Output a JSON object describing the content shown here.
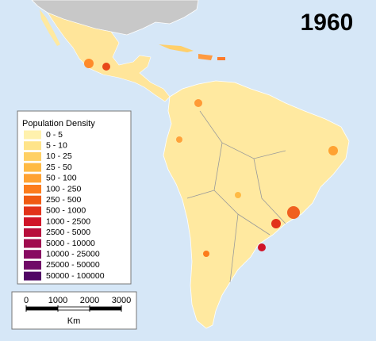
{
  "title": "1960",
  "legend": {
    "title": "Population Density",
    "items": [
      {
        "label": "0 - 5",
        "color": "#fff1ad"
      },
      {
        "label": "5 - 10",
        "color": "#ffe48a"
      },
      {
        "label": "10 - 25",
        "color": "#ffd064"
      },
      {
        "label": "25 - 50",
        "color": "#ffba44"
      },
      {
        "label": "50 - 100",
        "color": "#ffa232"
      },
      {
        "label": "100 - 250",
        "color": "#fc7c1c"
      },
      {
        "label": "250 - 500",
        "color": "#f05a12"
      },
      {
        "label": "500 - 1000",
        "color": "#e2321a"
      },
      {
        "label": "1000 - 2500",
        "color": "#d01428"
      },
      {
        "label": "2500 - 5000",
        "color": "#b80e3c"
      },
      {
        "label": "5000 - 10000",
        "color": "#a00a4e"
      },
      {
        "label": "10000 - 25000",
        "color": "#880a62"
      },
      {
        "label": "25000 - 50000",
        "color": "#700a68"
      },
      {
        "label": "50000 - 100000",
        "color": "#500664"
      }
    ]
  },
  "scale_bar": {
    "ticks": [
      0,
      1000,
      2000,
      3000
    ],
    "unit": "Km"
  }
}
